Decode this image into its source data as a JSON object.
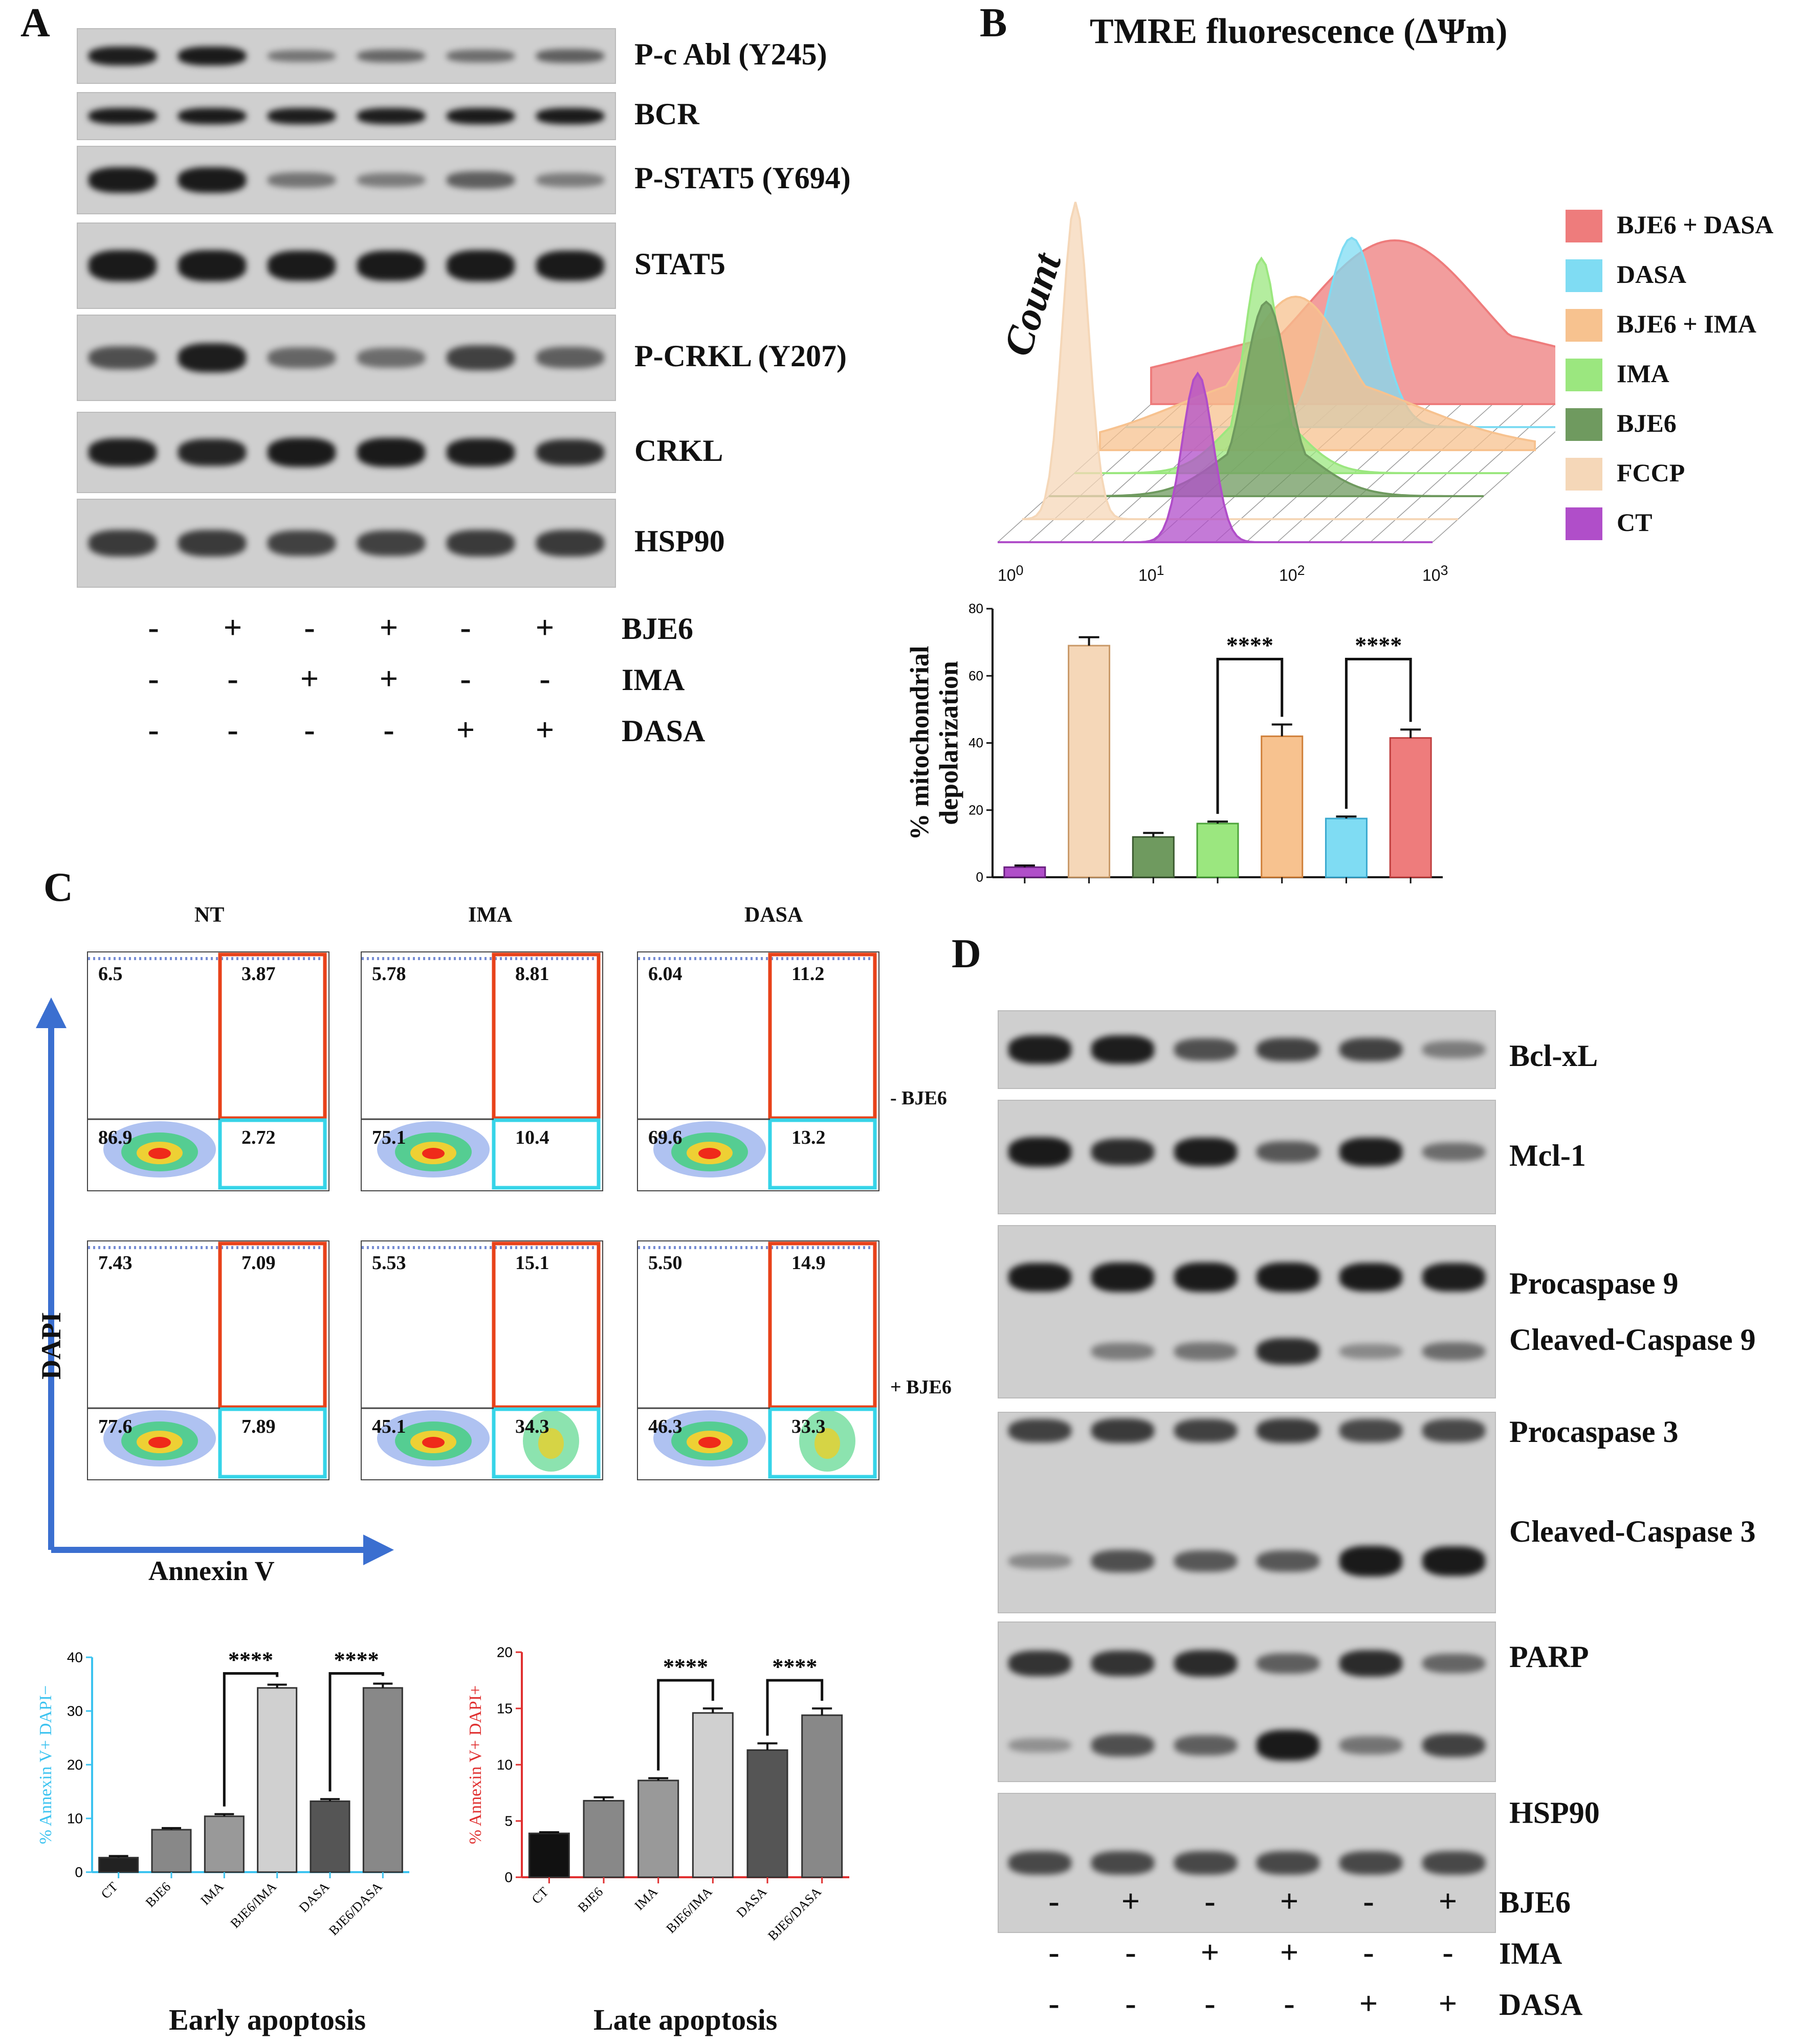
{
  "panels": {
    "A": "A",
    "B": "B",
    "C": "C",
    "D": "D"
  },
  "colors": {
    "bje6_dasa": "#ee7c7c",
    "dasa": "#7fdcf3",
    "bje6_ima": "#f7c28f",
    "ima": "#9be77f",
    "bje6": "#6f9a5f",
    "fccp": "#f5d7b8",
    "ct": "#b04ec9",
    "early_axis": "#3cc3f0",
    "late_axis": "#e03030"
  },
  "panelA": {
    "blots": [
      "P-c Abl (Y245)",
      "BCR",
      "P-STAT5 (Y694)",
      "STAT5",
      "P-CRKL (Y207)",
      "CRKL",
      "HSP90"
    ],
    "conditions": [
      {
        "name": "BJE6",
        "values": [
          "-",
          "+",
          "-",
          "+",
          "-",
          "+"
        ]
      },
      {
        "name": "IMA",
        "values": [
          "-",
          "-",
          "+",
          "+",
          "-",
          "-"
        ]
      },
      {
        "name": "DASA",
        "values": [
          "-",
          "-",
          "-",
          "-",
          "+",
          "+"
        ]
      }
    ]
  },
  "panelB": {
    "title": "TMRE fluorescence (ΔΨm)",
    "ylabel": "Count",
    "x_ticks": [
      "10",
      "10",
      "10",
      "10"
    ],
    "x_tick_exps": [
      "0",
      "1",
      "2",
      "3"
    ],
    "legend": [
      "BJE6 + DASA",
      "DASA",
      "BJE6 + IMA",
      "IMA",
      "BJE6",
      "FCCP",
      "CT"
    ]
  },
  "chart_data": [
    {
      "type": "bar",
      "ylabel": "% mitochondrial depolarization",
      "categories": [
        "CT",
        "FCCP",
        "BJE6",
        "IMA",
        "BJE6 + IMA",
        "DASA",
        "BJE6 + DASA"
      ],
      "values": [
        3,
        69,
        12,
        16,
        42,
        17.5,
        41.5
      ],
      "errors": [
        0.5,
        2.5,
        1.2,
        0.6,
        3.5,
        0.6,
        2.5
      ],
      "ylim": [
        0,
        80
      ],
      "yticks": [
        0,
        20,
        40,
        60,
        80
      ],
      "annotations": [
        "****",
        "****"
      ]
    },
    {
      "type": "bar",
      "title": "Early apoptosis",
      "ylabel": "% Annexin V+ DAPI−",
      "categories": [
        "CT",
        "BJE6",
        "IMA",
        "BJE6/IMA",
        "DASA",
        "BJE6/DASA"
      ],
      "values": [
        2.7,
        7.9,
        10.4,
        34.3,
        13.2,
        34.3
      ],
      "errors": [
        0.3,
        0.3,
        0.4,
        0.6,
        0.4,
        0.8
      ],
      "ylim": [
        0,
        40
      ],
      "yticks": [
        0,
        10,
        20,
        30,
        40
      ],
      "annotations": [
        "****",
        "****"
      ]
    },
    {
      "type": "bar",
      "title": "Late apoptosis",
      "ylabel": "% Annexin V+ DAPI+",
      "categories": [
        "CT",
        "BJE6",
        "IMA",
        "BJE6/IMA",
        "DASA",
        "BJE6/DASA"
      ],
      "values": [
        3.9,
        6.8,
        8.6,
        14.6,
        11.3,
        14.4
      ],
      "errors": [
        0.1,
        0.3,
        0.2,
        0.4,
        0.6,
        0.6
      ],
      "ylim": [
        0,
        20
      ],
      "yticks": [
        0,
        5,
        10,
        15,
        20
      ],
      "annotations": [
        "****",
        "****"
      ]
    }
  ],
  "panelC": {
    "columns": [
      "NT",
      "IMA",
      "DASA"
    ],
    "rows": [
      "- BJE6",
      "+ BJE6"
    ],
    "xlabel": "Annexin V",
    "ylabel": "DAPI",
    "quadrants": [
      [
        [
          "6.5",
          "3.87",
          "86.9",
          "2.72"
        ],
        [
          "5.78",
          "8.81",
          "75.1",
          "10.4"
        ],
        [
          "6.04",
          "11.2",
          "69.6",
          "13.2"
        ]
      ],
      [
        [
          "7.43",
          "7.09",
          "77.6",
          "7.89"
        ],
        [
          "5.53",
          "15.1",
          "45.1",
          "34.3"
        ],
        [
          "5.50",
          "14.9",
          "46.3",
          "33.3"
        ]
      ]
    ]
  },
  "panelD": {
    "labels": [
      "Bcl-xL",
      "Mcl-1",
      "Procaspase 9",
      "Cleaved-Caspase 9",
      "Procaspase 3",
      "Cleaved-Caspase 3",
      "PARP",
      "HSP90"
    ],
    "conditions": [
      {
        "name": "BJE6",
        "values": [
          "-",
          "+",
          "-",
          "+",
          "-",
          "+"
        ]
      },
      {
        "name": "IMA",
        "values": [
          "-",
          "-",
          "+",
          "+",
          "-",
          "-"
        ]
      },
      {
        "name": "DASA",
        "values": [
          "-",
          "-",
          "-",
          "-",
          "+",
          "+"
        ]
      }
    ]
  }
}
